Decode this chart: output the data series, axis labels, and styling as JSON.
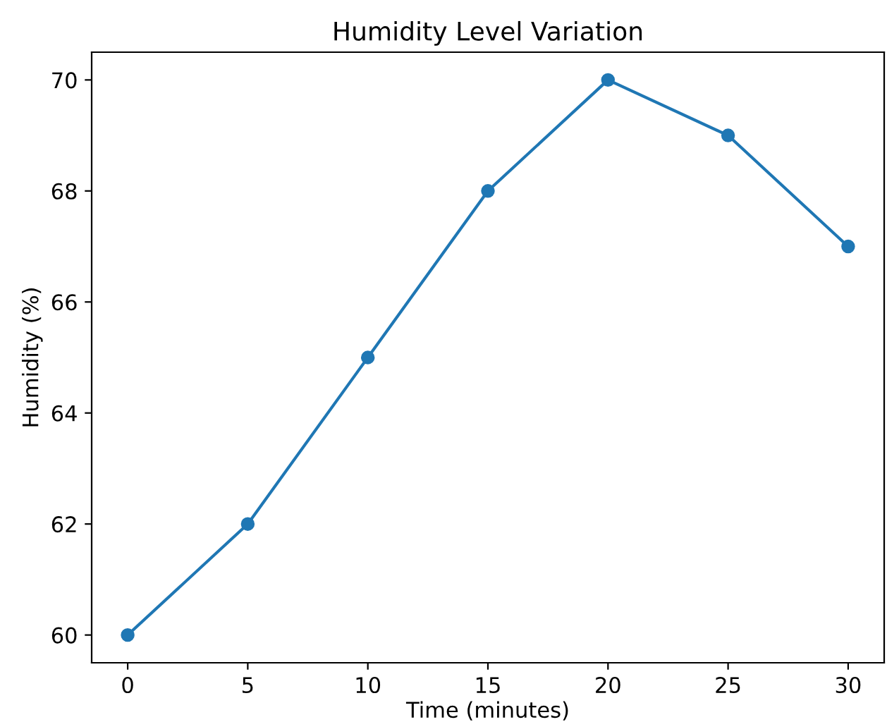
{
  "chart_data": {
    "type": "line",
    "title": "Humidity Level Variation",
    "xlabel": "Time (minutes)",
    "ylabel": "Humidity (%)",
    "x": [
      0,
      5,
      10,
      15,
      20,
      25,
      30
    ],
    "series": [
      {
        "color": "#1f77b4",
        "values": [
          60,
          62,
          65,
          68,
          70,
          69,
          67
        ]
      }
    ],
    "xlim": [
      -1.5,
      31.5
    ],
    "ylim": [
      59.5,
      70.5
    ],
    "xticks": [
      0,
      5,
      10,
      15,
      20,
      25,
      30
    ],
    "yticks": [
      60,
      62,
      64,
      66,
      68,
      70
    ],
    "marker": "circle",
    "line_style": "solid",
    "grid": false,
    "legend": false
  }
}
